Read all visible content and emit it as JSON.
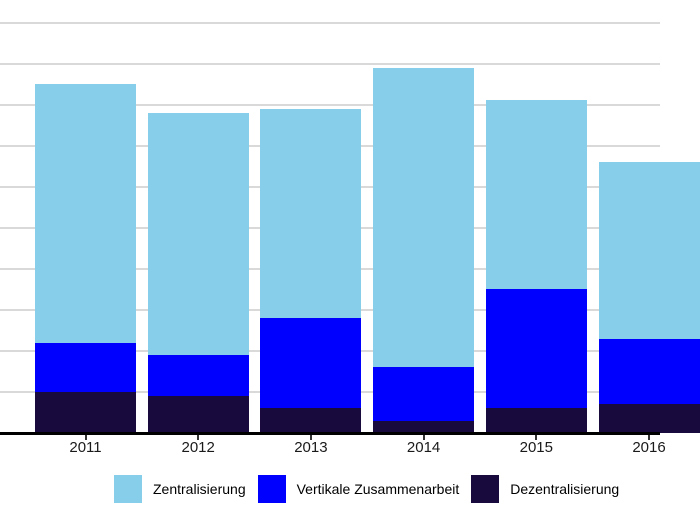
{
  "chart_data": {
    "type": "bar",
    "stacked": true,
    "title": "",
    "xlabel": "",
    "ylabel": "",
    "categories": [
      "2011",
      "2012",
      "2013",
      "2014",
      "2015",
      "2016"
    ],
    "series": [
      {
        "name": "Zentralisierung",
        "color": "#87CEEB",
        "values": [
          63,
          59,
          51,
          73,
          46,
          43
        ]
      },
      {
        "name": "Vertikale Zusammenarbeit",
        "color": "#0000FF",
        "values": [
          12,
          10,
          22,
          13,
          29,
          16
        ]
      },
      {
        "name": "Dezentralisierung",
        "color": "#190A3E",
        "values": [
          10,
          9,
          6,
          3,
          6,
          7
        ]
      }
    ],
    "stack_order_bottom_to_top": [
      "Dezentralisierung",
      "Vertikale Zusammenarbeit",
      "Zentralisierung"
    ],
    "ylim": [
      0,
      105.5
    ],
    "y_gridline_interval": 10,
    "y_axis_labels_visible": false,
    "grid": true,
    "gridline_color": "#D9D9D9",
    "axis_line_color": "#000000",
    "tick_label_color": "#1A1A1A",
    "legend_position": "bottom"
  }
}
